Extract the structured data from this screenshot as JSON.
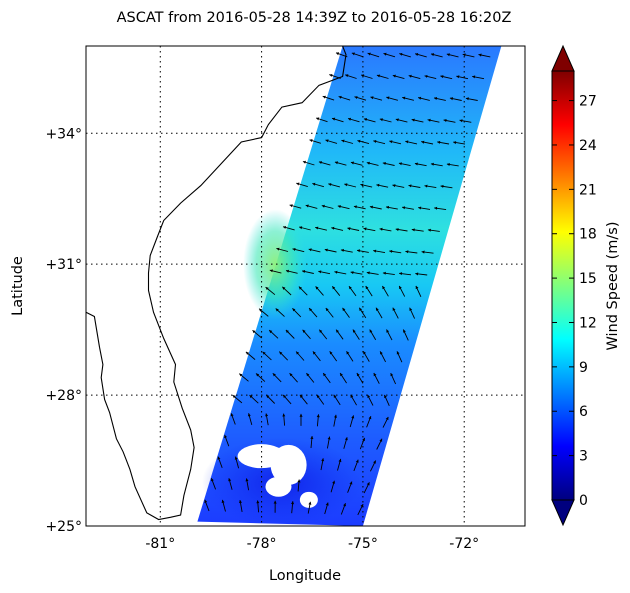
{
  "title": "ASCAT  from 2016-05-28 14:39Z to 2016-05-28 16:20Z",
  "xlabel": "Longitude",
  "ylabel": "Latitude",
  "colorbar": {
    "label": "Wind Speed (m/s)",
    "min": 0,
    "max": 29,
    "ticks": [
      "0",
      "3",
      "6",
      "9",
      "12",
      "15",
      "18",
      "21",
      "24",
      "27"
    ],
    "colors": [
      "#00007f",
      "#0000ff",
      "#007fff",
      "#00ffff",
      "#7fff7f",
      "#ffff00",
      "#ff7f00",
      "#ff0000",
      "#7f0000"
    ]
  },
  "map": {
    "lon_range": [
      -83.2,
      -70.2
    ],
    "lat_range": [
      25.0,
      36.0
    ],
    "x_ticks": [
      {
        "value": -81,
        "label": "-81°"
      },
      {
        "value": -78,
        "label": "-78°"
      },
      {
        "value": -75,
        "label": "-75°"
      },
      {
        "value": -72,
        "label": "-72°"
      }
    ],
    "y_ticks": [
      {
        "value": 25,
        "label": "+25°"
      },
      {
        "value": 28,
        "label": "+28°"
      },
      {
        "value": 31,
        "label": "+31°"
      },
      {
        "value": 34,
        "label": "+34°"
      }
    ],
    "gridlines": true,
    "swath_corners": [
      [
        -79.9,
        25.1
      ],
      [
        -75.0,
        25.0
      ],
      [
        -70.9,
        36.0
      ],
      [
        -75.6,
        36.0
      ]
    ],
    "coastline": [
      [
        -83.2,
        29.9
      ],
      [
        -82.95,
        29.8
      ],
      [
        -82.8,
        29.1
      ],
      [
        -82.7,
        28.7
      ],
      [
        -82.75,
        28.4
      ],
      [
        -82.65,
        27.9
      ],
      [
        -82.5,
        27.6
      ],
      [
        -82.3,
        27.0
      ],
      [
        -82.1,
        26.7
      ],
      [
        -81.9,
        26.3
      ],
      [
        -81.75,
        25.9
      ],
      [
        -81.4,
        25.3
      ],
      [
        -81.05,
        25.15
      ],
      [
        -80.7,
        25.2
      ],
      [
        -80.4,
        25.25
      ],
      [
        -80.3,
        25.7
      ],
      [
        -80.1,
        26.3
      ],
      [
        -80.0,
        26.8
      ],
      [
        -80.1,
        27.2
      ],
      [
        -80.35,
        27.7
      ],
      [
        -80.6,
        28.3
      ],
      [
        -80.55,
        28.7
      ],
      [
        -80.9,
        29.3
      ],
      [
        -81.2,
        29.9
      ],
      [
        -81.35,
        30.4
      ],
      [
        -81.35,
        30.8
      ],
      [
        -81.3,
        31.2
      ],
      [
        -81.1,
        31.6
      ],
      [
        -80.9,
        32.0
      ],
      [
        -80.4,
        32.4
      ],
      [
        -79.8,
        32.8
      ],
      [
        -79.2,
        33.3
      ],
      [
        -78.6,
        33.8
      ],
      [
        -78.0,
        33.9
      ],
      [
        -77.8,
        34.2
      ],
      [
        -77.4,
        34.6
      ],
      [
        -76.8,
        34.7
      ],
      [
        -76.3,
        35.1
      ],
      [
        -75.6,
        35.3
      ],
      [
        -75.5,
        35.8
      ],
      [
        -75.6,
        36.0
      ]
    ],
    "no_data_patches": [
      {
        "lon": -78.0,
        "lat": 26.6
      },
      {
        "lon": -77.2,
        "lat": 26.4
      },
      {
        "lon": -76.6,
        "lat": 25.6
      },
      {
        "lon": -77.5,
        "lat": 25.9
      }
    ],
    "wind_field": {
      "south_speed_ms": 4,
      "mid_jet_speed_ms": 13,
      "north_speed_ms": 7,
      "direction_south": "toward north",
      "direction_north": "toward west-northwest"
    }
  }
}
